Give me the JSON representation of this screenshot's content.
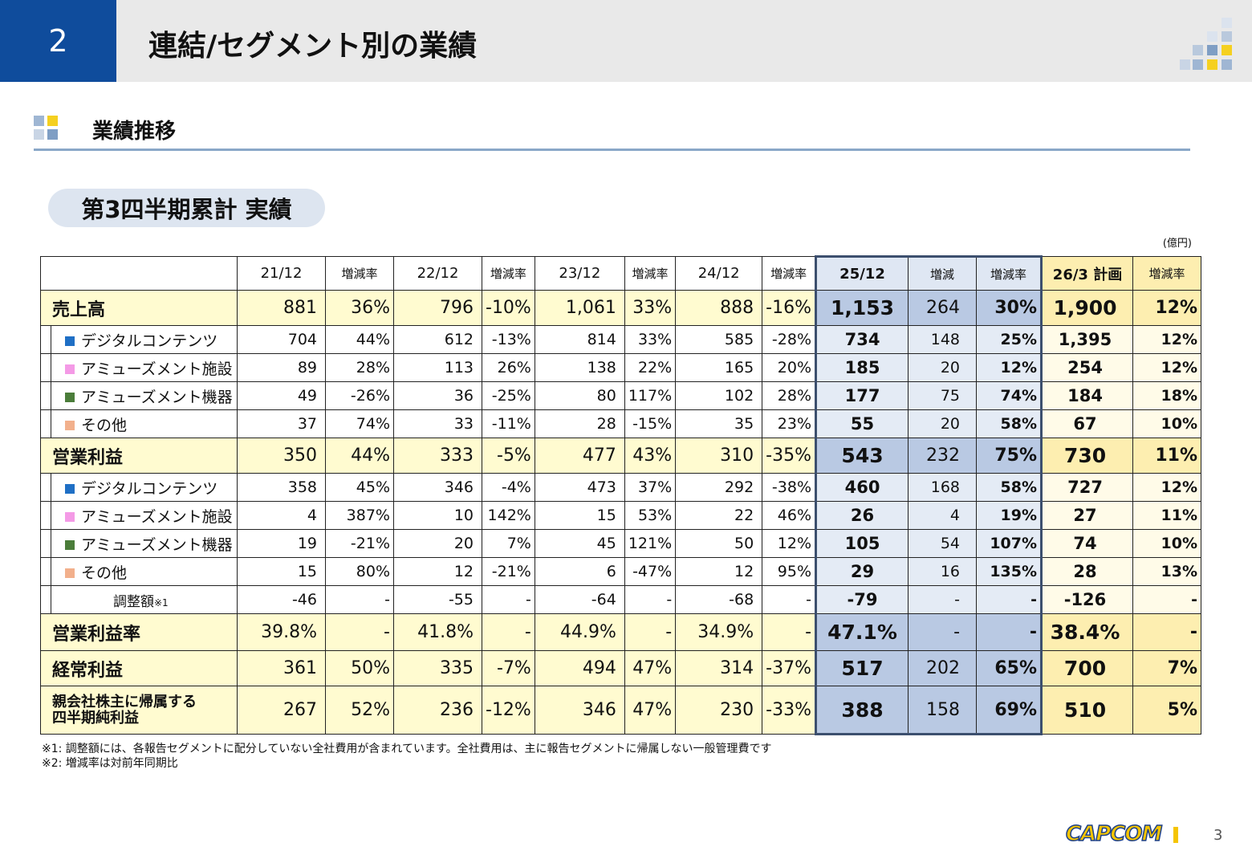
{
  "header": {
    "section_number": "2",
    "title": "連結/セグメント別の業績"
  },
  "section_heading": "業績推移",
  "table_title": "第3四半期累計 実績",
  "unit": "(億円)",
  "table": {
    "header": [
      "21/12",
      "増減率",
      "22/12",
      "増減率",
      "23/12",
      "増減率",
      "24/12",
      "増減率",
      "25/12",
      "増減",
      "増減率",
      "26/3 計画",
      "増減率"
    ],
    "rows": [
      {
        "kind": "main",
        "label": [
          "売上高"
        ],
        "cells": [
          "881",
          "36%",
          "796",
          "-10%",
          "1,061",
          "33%",
          "888",
          "-16%",
          "1,153",
          "264",
          "30%",
          "1,900",
          "12%"
        ]
      },
      {
        "kind": "sub",
        "marker_color": "#1f6fc5",
        "label": [
          "デジタルコンテンツ"
        ],
        "cells": [
          "704",
          "44%",
          "612",
          "-13%",
          "814",
          "33%",
          "585",
          "-28%",
          "734",
          "148",
          "25%",
          "1,395",
          "12%"
        ]
      },
      {
        "kind": "sub",
        "marker_color": "#f49ae6",
        "label": [
          "アミューズメント施設"
        ],
        "cells": [
          "89",
          "28%",
          "113",
          "26%",
          "138",
          "22%",
          "165",
          "20%",
          "185",
          "20",
          "12%",
          "254",
          "12%"
        ]
      },
      {
        "kind": "sub",
        "marker_color": "#4b7d3a",
        "label": [
          "アミューズメント機器"
        ],
        "cells": [
          "49",
          "-26%",
          "36",
          "-25%",
          "80",
          "117%",
          "102",
          "28%",
          "177",
          "75",
          "74%",
          "184",
          "18%"
        ]
      },
      {
        "kind": "sub",
        "marker_color": "#f2b08c",
        "label": [
          "その他"
        ],
        "cells": [
          "37",
          "74%",
          "33",
          "-11%",
          "28",
          "-15%",
          "35",
          "23%",
          "55",
          "20",
          "58%",
          "67",
          "10%"
        ]
      },
      {
        "kind": "main",
        "label": [
          "営業利益"
        ],
        "cells": [
          "350",
          "44%",
          "333",
          "-5%",
          "477",
          "43%",
          "310",
          "-35%",
          "543",
          "232",
          "75%",
          "730",
          "11%"
        ]
      },
      {
        "kind": "sub",
        "marker_color": "#1f6fc5",
        "label": [
          "デジタルコンテンツ"
        ],
        "cells": [
          "358",
          "45%",
          "346",
          "-4%",
          "473",
          "37%",
          "292",
          "-38%",
          "460",
          "168",
          "58%",
          "727",
          "12%"
        ]
      },
      {
        "kind": "sub",
        "marker_color": "#f49ae6",
        "label": [
          "アミューズメント施設"
        ],
        "cells": [
          "4",
          "387%",
          "10",
          "142%",
          "15",
          "53%",
          "22",
          "46%",
          "26",
          "4",
          "19%",
          "27",
          "11%"
        ]
      },
      {
        "kind": "sub",
        "marker_color": "#4b7d3a",
        "label": [
          "アミューズメント機器"
        ],
        "cells": [
          "19",
          "-21%",
          "20",
          "7%",
          "45",
          "121%",
          "50",
          "12%",
          "105",
          "54",
          "107%",
          "74",
          "10%"
        ]
      },
      {
        "kind": "sub",
        "marker_color": "#f2b08c",
        "label": [
          "その他"
        ],
        "cells": [
          "15",
          "80%",
          "12",
          "-21%",
          "6",
          "-47%",
          "12",
          "95%",
          "29",
          "16",
          "135%",
          "28",
          "13%"
        ]
      },
      {
        "kind": "adj",
        "label": [
          "調整額"
        ],
        "note": "※1",
        "cells": [
          "-46",
          "-",
          "-55",
          "-",
          "-64",
          "-",
          "-68",
          "-",
          "-79",
          "-",
          "-",
          "-126",
          "-"
        ]
      },
      {
        "kind": "main",
        "label": [
          "営業利益率"
        ],
        "cells": [
          "39.8%",
          "-",
          "41.8%",
          "-",
          "44.9%",
          "-",
          "34.9%",
          "-",
          "47.1%",
          "-",
          "-",
          "38.4%",
          "-"
        ]
      },
      {
        "kind": "main",
        "label": [
          "経常利益"
        ],
        "cells": [
          "361",
          "50%",
          "335",
          "-7%",
          "494",
          "47%",
          "314",
          "-37%",
          "517",
          "202",
          "65%",
          "700",
          "7%"
        ]
      },
      {
        "kind": "main",
        "label": [
          "親会社株主に帰属する",
          "四半期純利益"
        ],
        "cells": [
          "267",
          "52%",
          "236",
          "-12%",
          "346",
          "47%",
          "230",
          "-33%",
          "388",
          "158",
          "69%",
          "510",
          "5%"
        ]
      }
    ]
  },
  "footnotes": [
    "※1: 調整額には、各報告セグメントに配分していない全社費用が含まれています。全社費用は、主に報告セグメントに帰属しない一般管理費です",
    "※2: 増減率は対前年同期比"
  ],
  "logo": "CAPCOM",
  "page_number": "3"
}
